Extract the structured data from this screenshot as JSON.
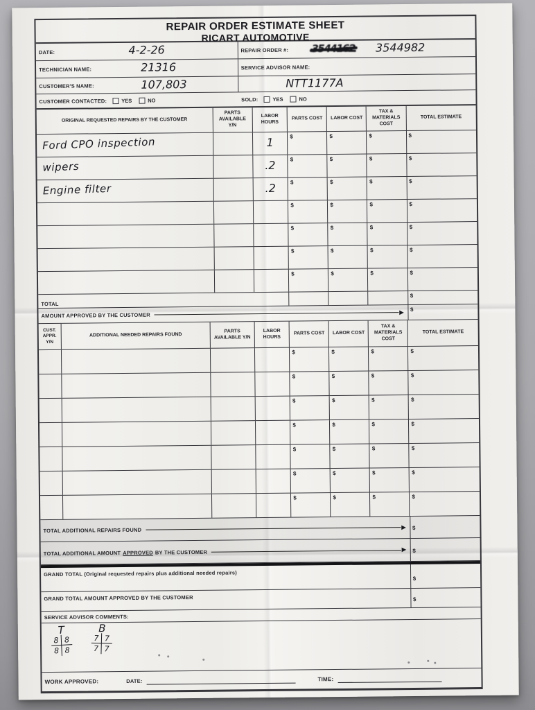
{
  "photo": {
    "surface_color": "#a9a9ad",
    "paper_color": "#f1f0ed",
    "ink_color": "#1b1c22",
    "line_color": "#35353a"
  },
  "form": {
    "currency_symbol": "$",
    "title_line1": "REPAIR ORDER ESTIMATE SHEET",
    "title_line2": "RICART AUTOMOTIVE",
    "info": {
      "date_label": "DATE:",
      "date_value": "4-2-26",
      "repair_order_label": "REPAIR ORDER #:",
      "repair_order_crossed_out": "3544162",
      "repair_order_value": "3544982",
      "technician_label": "TECHNICIAN NAME:",
      "technician_value": "21316",
      "service_advisor_label": "SERVICE ADVISOR NAME:",
      "customer_label": "CUSTOMER'S NAME:",
      "customer_value": "107,803",
      "vehicle_stock_value": "NTT1177A",
      "customer_contacted_label": "CUSTOMER CONTACTED:",
      "sold_label": "SOLD:",
      "yes_label": "YES",
      "no_label": "NO"
    },
    "original_table": {
      "headers": [
        "ORIGINAL REQUESTED REPAIRS BY THE CUSTOMER",
        "PARTS AVAILABLE Y/N",
        "LABOR HOURS",
        "PARTS COST",
        "LABOR COST",
        "TAX & MATERIALS COST",
        "TOTAL ESTIMATE"
      ],
      "rows": [
        {
          "description": "Ford CPO inspection",
          "parts_available": "",
          "labor_hours": "1"
        },
        {
          "description": "wipers",
          "parts_available": "",
          "labor_hours": ".2"
        },
        {
          "description": "Engine filter",
          "parts_available": "",
          "labor_hours": ".2"
        },
        {
          "description": "",
          "parts_available": "",
          "labor_hours": ""
        },
        {
          "description": "",
          "parts_available": "",
          "labor_hours": ""
        },
        {
          "description": "",
          "parts_available": "",
          "labor_hours": ""
        },
        {
          "description": "",
          "parts_available": "",
          "labor_hours": ""
        }
      ],
      "total_label": "TOTAL",
      "amount_approved_label": "AMOUNT APPROVED BY THE CUSTOMER"
    },
    "additional_table": {
      "headers": [
        "CUST. APPR. Y/N",
        "ADDITIONAL NEEDED REPAIRS FOUND",
        "PARTS AVAILABLE Y/N",
        "LABOR HOURS",
        "PARTS COST",
        "LABOR COST",
        "TAX & MATERIALS COST",
        "TOTAL ESTIMATE"
      ],
      "rows": [
        {
          "cust_appr": "",
          "description": "",
          "parts_available": "",
          "labor_hours": ""
        },
        {
          "cust_appr": "",
          "description": "",
          "parts_available": "",
          "labor_hours": ""
        },
        {
          "cust_appr": "",
          "description": "",
          "parts_available": "",
          "labor_hours": ""
        },
        {
          "cust_appr": "",
          "description": "",
          "parts_available": "",
          "labor_hours": ""
        },
        {
          "cust_appr": "",
          "description": "",
          "parts_available": "",
          "labor_hours": ""
        },
        {
          "cust_appr": "",
          "description": "",
          "parts_available": "",
          "labor_hours": ""
        },
        {
          "cust_appr": "",
          "description": "",
          "parts_available": "",
          "labor_hours": ""
        }
      ],
      "total_additional_label": "TOTAL ADDITIONAL REPAIRS FOUND",
      "total_additional_approved_prefix": "TOTAL ADDITIONAL AMOUNT",
      "total_additional_approved_underlined": "APPROVED",
      "total_additional_approved_suffix": "BY THE CUSTOMER"
    },
    "grand_total_label": "GRAND TOTAL (Original requested repairs plus additional needed repairs)",
    "grand_total_approved_label": "GRAND TOTAL AMOUNT APPROVED BY THE CUSTOMER",
    "comments": {
      "label": "SERVICE ADVISOR COMMENTS:",
      "tread_marks": [
        {
          "label": "T",
          "quadrants": [
            "8",
            "8",
            "8",
            "8"
          ]
        },
        {
          "label": "B",
          "quadrants": [
            "7",
            "7",
            "7",
            "7"
          ]
        }
      ]
    },
    "footer": {
      "work_approved_label": "WORK APPROVED:",
      "date_label": "DATE:",
      "time_label": "TIME:"
    }
  }
}
